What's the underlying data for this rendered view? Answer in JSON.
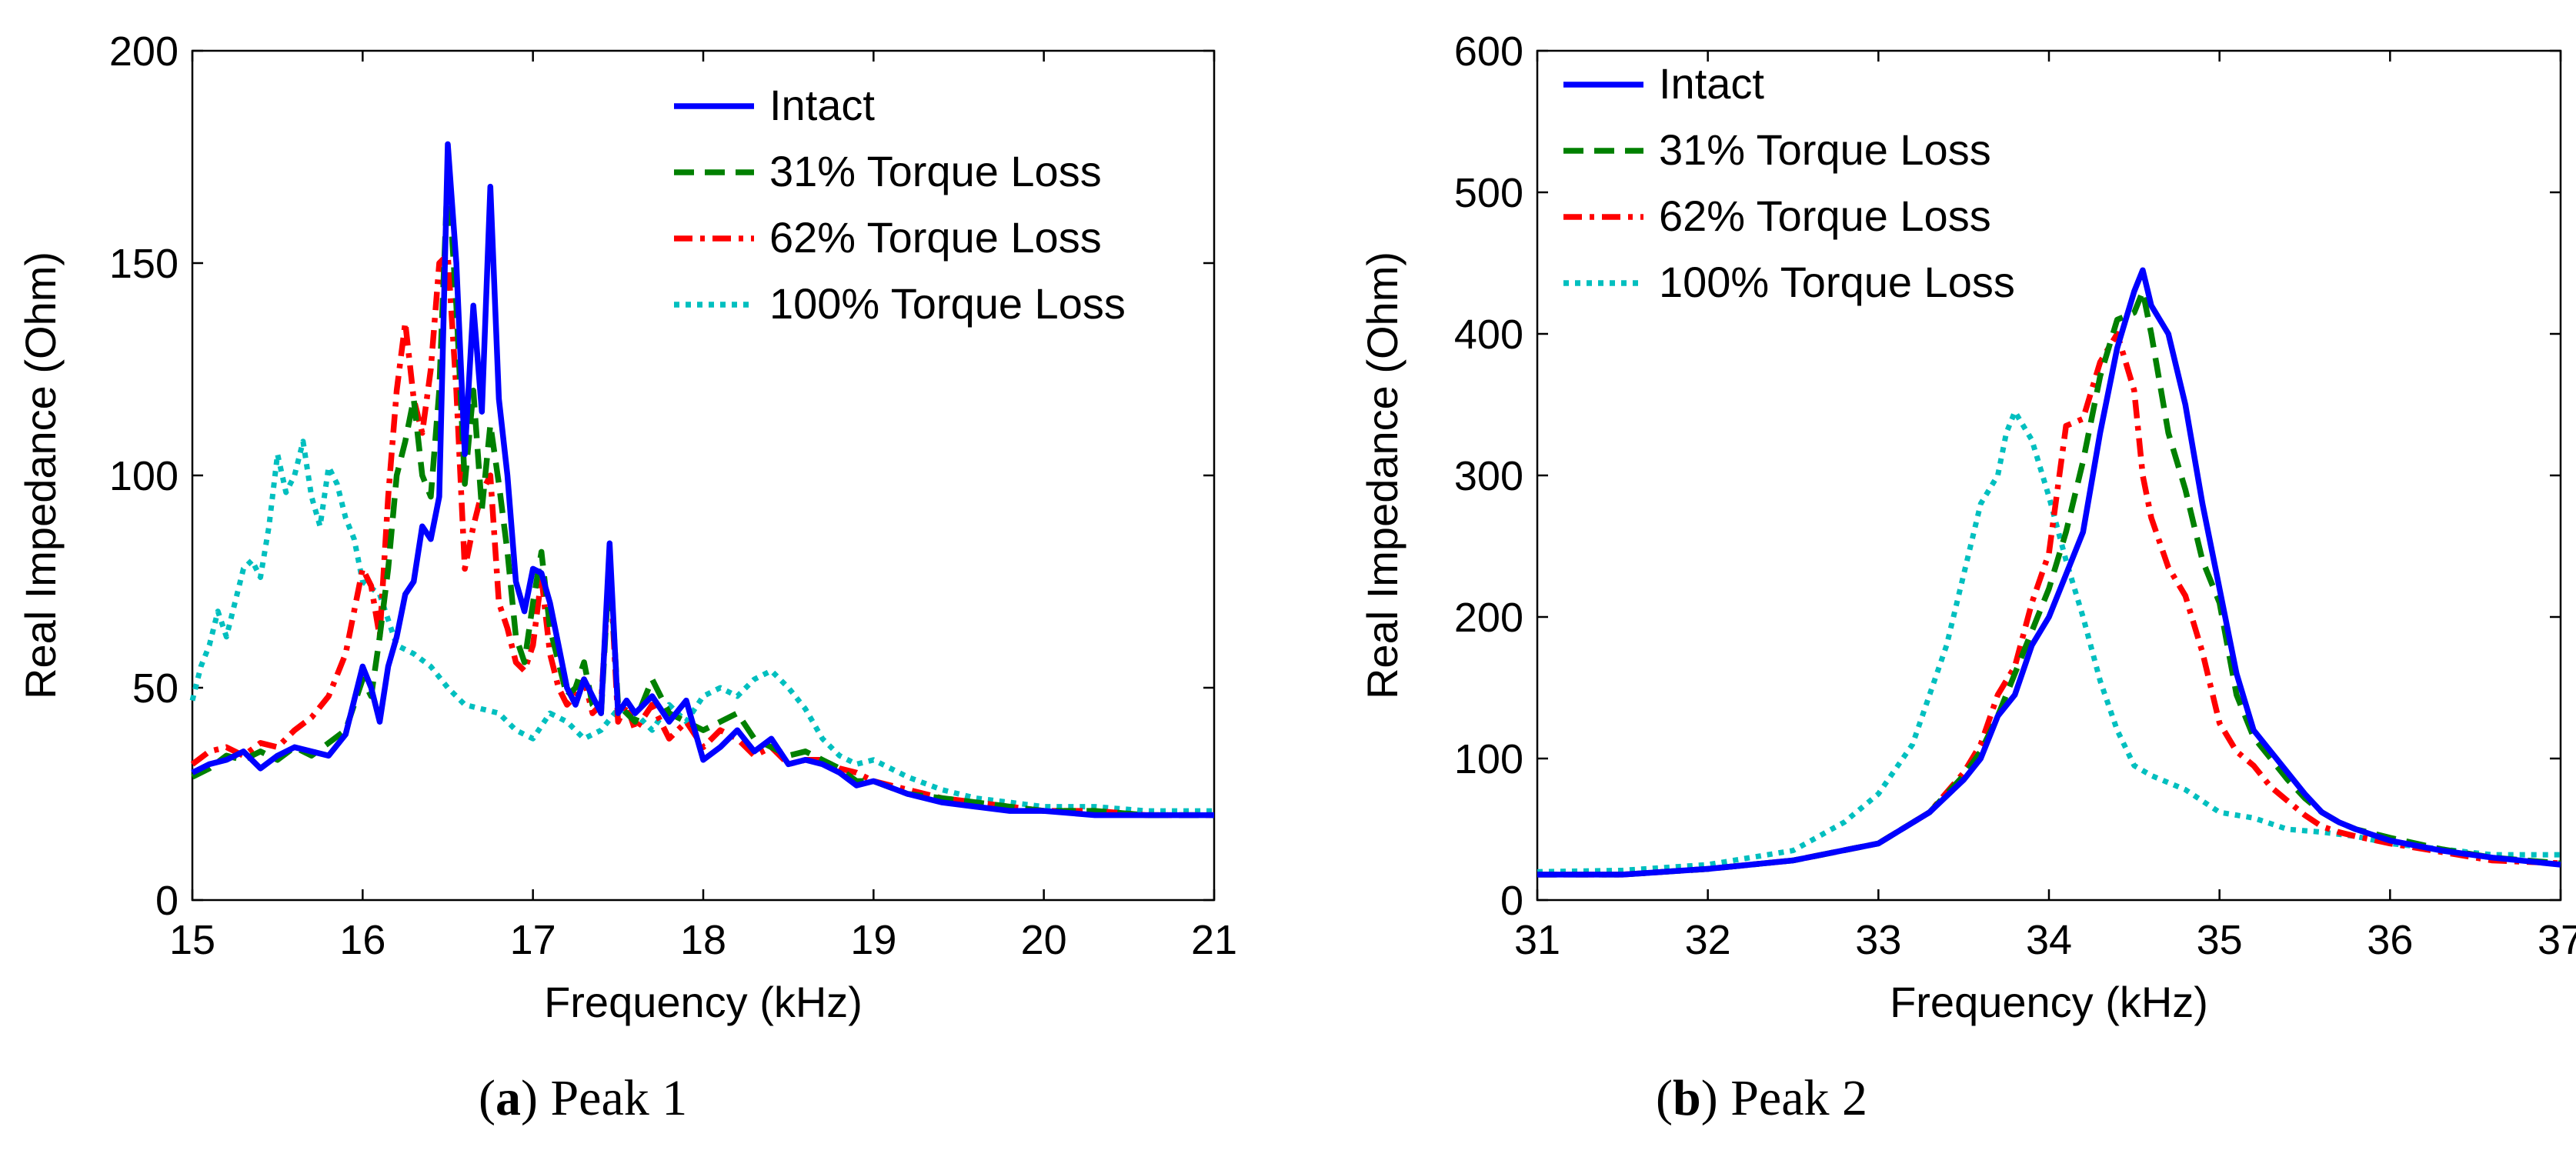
{
  "captions": [
    {
      "letter": "a",
      "text": "Peak 1"
    },
    {
      "letter": "b",
      "text": "Peak 2"
    }
  ],
  "chart_data": [
    {
      "type": "line",
      "title": "",
      "xlabel": "Frequency (kHz)",
      "ylabel": "Real Impedance (Ohm)",
      "xlim": [
        15,
        21
      ],
      "ylim": [
        0,
        200
      ],
      "xticks": [
        "15",
        "16",
        "17",
        "18",
        "19",
        "20",
        "21"
      ],
      "yticks": [
        "0",
        "50",
        "100",
        "150",
        "200"
      ],
      "legend": "top-right",
      "series": [
        {
          "name": "Intact",
          "color": "#0000ff",
          "style": "solid",
          "x": [
            15.0,
            15.1,
            15.2,
            15.3,
            15.4,
            15.5,
            15.6,
            15.7,
            15.8,
            15.9,
            16.0,
            16.05,
            16.1,
            16.15,
            16.2,
            16.25,
            16.3,
            16.35,
            16.4,
            16.45,
            16.5,
            16.55,
            16.6,
            16.65,
            16.7,
            16.75,
            16.8,
            16.85,
            16.9,
            16.95,
            17.0,
            17.05,
            17.1,
            17.15,
            17.2,
            17.25,
            17.3,
            17.35,
            17.4,
            17.45,
            17.5,
            17.55,
            17.6,
            17.7,
            17.8,
            17.9,
            18.0,
            18.1,
            18.2,
            18.3,
            18.4,
            18.5,
            18.6,
            18.7,
            18.8,
            18.9,
            19.0,
            19.2,
            19.4,
            19.6,
            19.8,
            20.0,
            20.3,
            20.6,
            21.0
          ],
          "y": [
            30,
            32,
            33,
            35,
            31,
            34,
            36,
            35,
            34,
            39,
            55,
            50,
            42,
            55,
            62,
            72,
            75,
            88,
            85,
            95,
            178,
            150,
            105,
            140,
            115,
            168,
            118,
            100,
            75,
            68,
            78,
            77,
            70,
            60,
            50,
            46,
            52,
            48,
            44,
            84,
            44,
            47,
            44,
            48,
            42,
            47,
            33,
            36,
            40,
            35,
            38,
            32,
            33,
            32,
            30,
            27,
            28,
            25,
            23,
            22,
            21,
            21,
            20,
            20,
            20
          ]
        },
        {
          "name": "31% Torque Loss",
          "color": "#008000",
          "style": "dashed",
          "x": [
            15.0,
            15.1,
            15.2,
            15.3,
            15.4,
            15.5,
            15.6,
            15.7,
            15.8,
            15.9,
            16.0,
            16.05,
            16.1,
            16.15,
            16.2,
            16.25,
            16.3,
            16.35,
            16.4,
            16.45,
            16.5,
            16.55,
            16.6,
            16.65,
            16.7,
            16.75,
            16.8,
            16.85,
            16.9,
            16.95,
            17.0,
            17.05,
            17.1,
            17.15,
            17.2,
            17.25,
            17.3,
            17.35,
            17.4,
            17.45,
            17.5,
            17.55,
            17.6,
            17.7,
            17.8,
            17.9,
            18.0,
            18.1,
            18.2,
            18.3,
            18.4,
            18.5,
            18.6,
            18.7,
            18.8,
            18.9,
            19.0,
            19.2,
            19.4,
            19.6,
            19.8,
            20.0,
            20.3,
            20.6,
            21.0
          ],
          "y": [
            29,
            31,
            34,
            33,
            35,
            33,
            36,
            34,
            37,
            40,
            52,
            48,
            62,
            78,
            100,
            108,
            118,
            100,
            95,
            120,
            172,
            140,
            98,
            120,
            92,
            112,
            98,
            82,
            62,
            56,
            70,
            82,
            64,
            56,
            48,
            50,
            56,
            46,
            44,
            80,
            46,
            44,
            42,
            52,
            44,
            42,
            40,
            42,
            44,
            38,
            36,
            34,
            35,
            33,
            31,
            28,
            28,
            25,
            24,
            23,
            22,
            21,
            21,
            20,
            20
          ]
        },
        {
          "name": "62% Torque Loss",
          "color": "#ff0000",
          "style": "dashdot",
          "x": [
            15.0,
            15.1,
            15.2,
            15.3,
            15.4,
            15.5,
            15.6,
            15.7,
            15.8,
            15.9,
            16.0,
            16.05,
            16.1,
            16.15,
            16.2,
            16.25,
            16.3,
            16.35,
            16.4,
            16.45,
            16.5,
            16.55,
            16.6,
            16.65,
            16.7,
            16.75,
            16.8,
            16.85,
            16.9,
            16.95,
            17.0,
            17.05,
            17.1,
            17.15,
            17.2,
            17.25,
            17.3,
            17.35,
            17.4,
            17.45,
            17.5,
            17.55,
            17.6,
            17.7,
            17.8,
            17.9,
            18.0,
            18.1,
            18.2,
            18.3,
            18.4,
            18.5,
            18.6,
            18.7,
            18.8,
            18.9,
            19.0,
            19.2,
            19.4,
            19.6,
            19.8,
            20.0,
            20.3,
            20.6,
            21.0
          ],
          "y": [
            32,
            35,
            36,
            34,
            37,
            36,
            40,
            43,
            48,
            58,
            78,
            74,
            62,
            95,
            120,
            136,
            118,
            110,
            125,
            150,
            152,
            120,
            78,
            88,
            96,
            100,
            70,
            64,
            56,
            54,
            60,
            76,
            58,
            50,
            46,
            48,
            52,
            44,
            46,
            80,
            42,
            46,
            40,
            46,
            38,
            42,
            36,
            40,
            38,
            34,
            36,
            32,
            33,
            33,
            31,
            30,
            28,
            26,
            24,
            23,
            22,
            21,
            21,
            20,
            20
          ]
        },
        {
          "name": "100% Torque Loss",
          "color": "#00bfbf",
          "style": "dotted",
          "x": [
            15.0,
            15.05,
            15.1,
            15.15,
            15.2,
            15.25,
            15.3,
            15.35,
            15.4,
            15.45,
            15.5,
            15.55,
            15.6,
            15.65,
            15.7,
            15.75,
            15.8,
            15.85,
            15.9,
            15.95,
            16.0,
            16.1,
            16.2,
            16.3,
            16.4,
            16.5,
            16.6,
            16.7,
            16.8,
            16.9,
            17.0,
            17.1,
            17.2,
            17.3,
            17.4,
            17.5,
            17.6,
            17.7,
            17.8,
            17.9,
            18.0,
            18.1,
            18.2,
            18.3,
            18.4,
            18.5,
            18.6,
            18.7,
            18.8,
            18.9,
            19.0,
            19.2,
            19.4,
            19.6,
            19.8,
            20.0,
            20.3,
            20.6,
            21.0
          ],
          "y": [
            47,
            55,
            60,
            68,
            62,
            70,
            78,
            80,
            76,
            88,
            105,
            96,
            100,
            108,
            95,
            88,
            102,
            98,
            90,
            85,
            75,
            72,
            60,
            58,
            55,
            50,
            46,
            45,
            44,
            40,
            38,
            44,
            42,
            38,
            40,
            45,
            44,
            40,
            46,
            42,
            48,
            50,
            48,
            52,
            54,
            50,
            45,
            38,
            34,
            32,
            33,
            29,
            26,
            24,
            23,
            22,
            22,
            21,
            21
          ]
        }
      ]
    },
    {
      "type": "line",
      "title": "",
      "xlabel": "Frequency (kHz)",
      "ylabel": "Real Impedance (Ohm)",
      "xlim": [
        31,
        37
      ],
      "ylim": [
        0,
        600
      ],
      "xticks": [
        "31",
        "32",
        "33",
        "34",
        "35",
        "36",
        "37"
      ],
      "yticks": [
        "0",
        "100",
        "200",
        "300",
        "400",
        "500",
        "600"
      ],
      "legend": "top-left",
      "series": [
        {
          "name": "Intact",
          "color": "#0000ff",
          "style": "solid",
          "x": [
            31.0,
            31.5,
            32.0,
            32.5,
            33.0,
            33.3,
            33.5,
            33.6,
            33.7,
            33.8,
            33.9,
            34.0,
            34.1,
            34.2,
            34.3,
            34.4,
            34.5,
            34.55,
            34.6,
            34.7,
            34.8,
            34.9,
            35.0,
            35.1,
            35.2,
            35.3,
            35.4,
            35.5,
            35.6,
            35.7,
            35.8,
            36.0,
            36.3,
            36.6,
            37.0
          ],
          "y": [
            18,
            18,
            22,
            28,
            40,
            62,
            85,
            100,
            130,
            145,
            180,
            200,
            230,
            260,
            330,
            390,
            430,
            445,
            420,
            400,
            350,
            280,
            220,
            160,
            120,
            105,
            90,
            75,
            62,
            55,
            50,
            42,
            35,
            30,
            25
          ]
        },
        {
          "name": "31% Torque Loss",
          "color": "#008000",
          "style": "dashed",
          "x": [
            31.0,
            31.5,
            32.0,
            32.5,
            33.0,
            33.3,
            33.5,
            33.6,
            33.7,
            33.8,
            33.9,
            34.0,
            34.1,
            34.2,
            34.3,
            34.4,
            34.5,
            34.55,
            34.6,
            34.7,
            34.8,
            34.9,
            35.0,
            35.1,
            35.2,
            35.3,
            35.4,
            35.5,
            35.6,
            35.7,
            35.8,
            36.0,
            36.3,
            36.6,
            37.0
          ],
          "y": [
            18,
            18,
            22,
            28,
            40,
            62,
            88,
            105,
            130,
            160,
            190,
            220,
            260,
            310,
            370,
            410,
            415,
            430,
            400,
            330,
            290,
            240,
            210,
            145,
            115,
            100,
            85,
            72,
            62,
            55,
            50,
            44,
            36,
            30,
            26
          ]
        },
        {
          "name": "62% Torque Loss",
          "color": "#ff0000",
          "style": "dashdot",
          "x": [
            31.0,
            31.5,
            32.0,
            32.5,
            33.0,
            33.3,
            33.5,
            33.6,
            33.7,
            33.8,
            33.9,
            34.0,
            34.1,
            34.2,
            34.3,
            34.4,
            34.5,
            34.55,
            34.6,
            34.7,
            34.8,
            34.9,
            35.0,
            35.1,
            35.2,
            35.3,
            35.4,
            35.5,
            35.6,
            35.7,
            35.8,
            36.0,
            36.3,
            36.6,
            37.0
          ],
          "y": [
            18,
            18,
            22,
            28,
            40,
            62,
            90,
            110,
            145,
            165,
            210,
            245,
            335,
            340,
            380,
            400,
            360,
            300,
            270,
            235,
            215,
            175,
            125,
            105,
            95,
            80,
            70,
            60,
            52,
            48,
            45,
            40,
            34,
            28,
            26
          ]
        },
        {
          "name": "100% Torque Loss",
          "color": "#00bfbf",
          "style": "dotted",
          "x": [
            31.0,
            31.5,
            32.0,
            32.5,
            32.8,
            33.0,
            33.2,
            33.4,
            33.5,
            33.6,
            33.7,
            33.75,
            33.8,
            33.9,
            34.0,
            34.1,
            34.2,
            34.3,
            34.4,
            34.5,
            34.6,
            34.8,
            35.0,
            35.2,
            35.4,
            35.6,
            35.8,
            36.0,
            36.3,
            36.6,
            37.0
          ],
          "y": [
            20,
            21,
            25,
            35,
            55,
            75,
            110,
            180,
            230,
            280,
            300,
            330,
            345,
            325,
            285,
            240,
            200,
            155,
            120,
            95,
            88,
            78,
            62,
            58,
            50,
            48,
            45,
            40,
            36,
            32,
            32
          ]
        }
      ]
    }
  ]
}
